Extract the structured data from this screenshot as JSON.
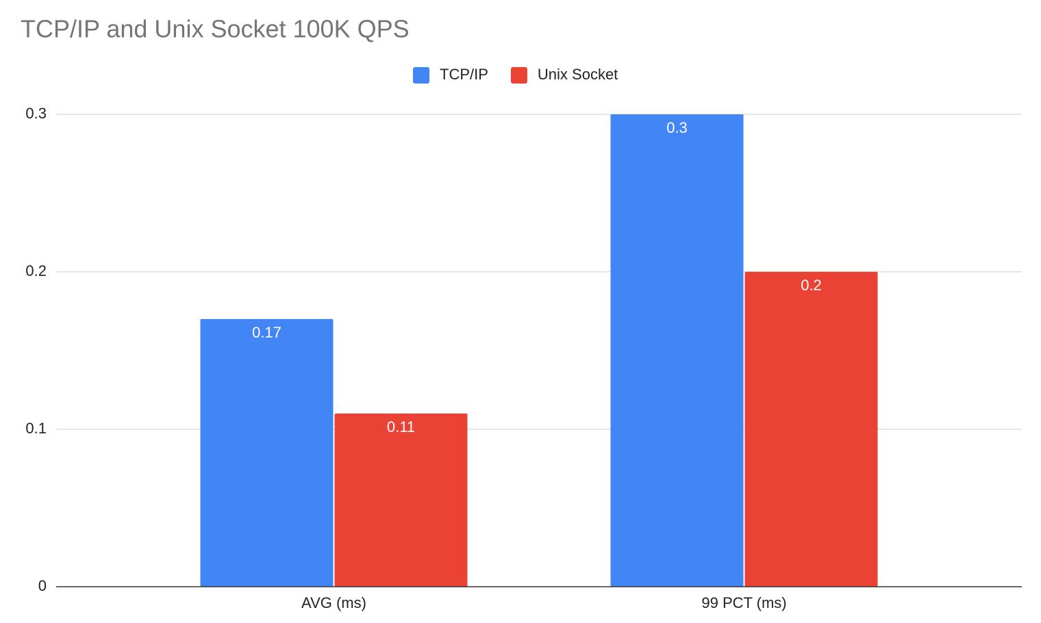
{
  "chart_data": {
    "type": "bar",
    "title": "TCP/IP and Unix Socket 100K QPS",
    "categories": [
      "AVG (ms)",
      "99 PCT (ms)"
    ],
    "series": [
      {
        "name": "TCP/IP",
        "color": "#4285f4",
        "values": [
          0.17,
          0.3
        ]
      },
      {
        "name": "Unix Socket",
        "color": "#ea4335",
        "values": [
          0.11,
          0.2
        ]
      }
    ],
    "ylim": [
      0,
      0.3
    ],
    "yticks": [
      0,
      0.1,
      0.2,
      0.3
    ],
    "grid": true,
    "legend": "top"
  }
}
